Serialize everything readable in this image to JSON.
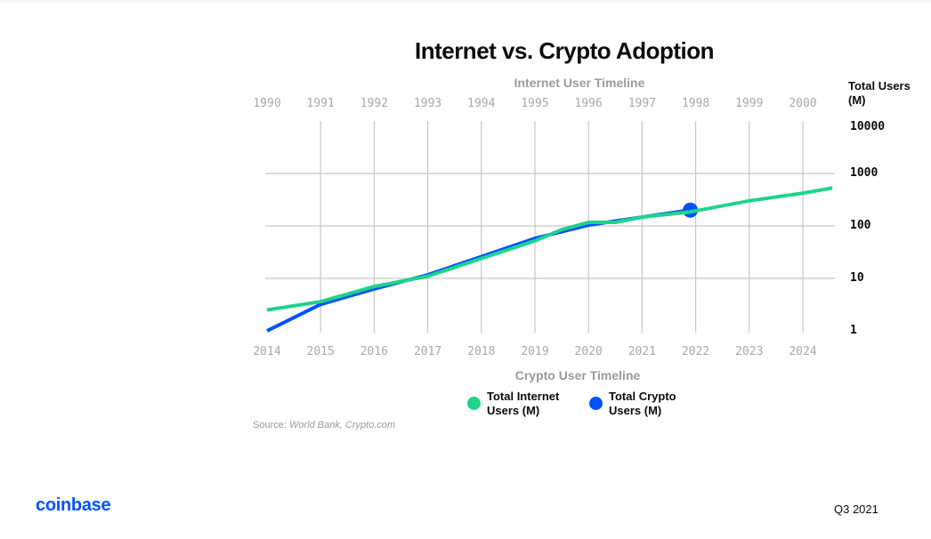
{
  "chart_data": {
    "type": "line",
    "title": "Internet vs. Crypto Adoption",
    "x_top_label": "Internet User Timeline",
    "x_bottom_label": "Crypto User Timeline",
    "ylabel": "Total Users (M)",
    "yscale": "log",
    "ylim": [
      1,
      10000
    ],
    "y_ticks": [
      "10000",
      "1000",
      "100",
      "10",
      "1"
    ],
    "x_top_ticks": [
      "1990",
      "1991",
      "1992",
      "1993",
      "1994",
      "1995",
      "1996",
      "1997",
      "1998",
      "1999",
      "2000"
    ],
    "x_bottom_ticks": [
      "2014",
      "2015",
      "2016",
      "2017",
      "2018",
      "2019",
      "2020",
      "2021",
      "2022",
      "2023",
      "2024"
    ],
    "grid": true,
    "legend_position": "bottom-center",
    "series": [
      {
        "name": "Total Internet Users (M)",
        "color": "#1fd38c",
        "x": [
          0,
          1,
          2,
          3,
          4,
          5,
          5.5,
          6,
          6.5,
          7,
          7.9,
          9,
          10,
          10.55
        ],
        "values": [
          2.5,
          3.6,
          7,
          11,
          24,
          52,
          85,
          117,
          117,
          147,
          185,
          300,
          420,
          530
        ]
      },
      {
        "name": "Total Crypto Users (M)",
        "color": "#0052ff",
        "x": [
          0,
          1,
          2,
          3,
          4,
          5,
          6,
          7,
          7.9
        ],
        "values": [
          1,
          3.2,
          6.3,
          11.7,
          26,
          58,
          104,
          147,
          200
        ],
        "end_marker": true
      }
    ]
  },
  "legend": {
    "internet": "Total Internet Users (M)",
    "crypto": "Total Crypto Users (M)"
  },
  "source": {
    "prefix": "Source: ",
    "text": "World Bank, Crypto.com"
  },
  "footer": {
    "logo": "coinbase",
    "period": "Q3 2021"
  }
}
